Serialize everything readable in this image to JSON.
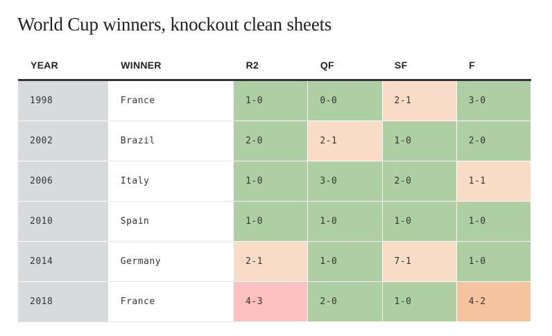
{
  "title": "World Cup winners, knockout clean sheets",
  "columns": [
    "YEAR",
    "WINNER",
    "R2",
    "QF",
    "SF",
    "F"
  ],
  "colors": {
    "clean_sheet": "#aecfa4",
    "conceded_one": "#f9dcc7",
    "conceded_two": "#f6c39f",
    "conceded_three": "#fdc1c2",
    "year_bg": "#d9dadb"
  },
  "rows": [
    {
      "year": "1998",
      "winner": "France",
      "results": [
        {
          "score": "1-0",
          "conceded": 0
        },
        {
          "score": "0-0",
          "conceded": 0
        },
        {
          "score": "2-1",
          "conceded": 1
        },
        {
          "score": "3-0",
          "conceded": 0
        }
      ]
    },
    {
      "year": "2002",
      "winner": "Brazil",
      "results": [
        {
          "score": "2-0",
          "conceded": 0
        },
        {
          "score": "2-1",
          "conceded": 1
        },
        {
          "score": "1-0",
          "conceded": 0
        },
        {
          "score": "2-0",
          "conceded": 0
        }
      ]
    },
    {
      "year": "2006",
      "winner": "Italy",
      "results": [
        {
          "score": "1-0",
          "conceded": 0
        },
        {
          "score": "3-0",
          "conceded": 0
        },
        {
          "score": "2-0",
          "conceded": 0
        },
        {
          "score": "1-1",
          "conceded": 1
        }
      ]
    },
    {
      "year": "2010",
      "winner": "Spain",
      "results": [
        {
          "score": "1-0",
          "conceded": 0
        },
        {
          "score": "1-0",
          "conceded": 0
        },
        {
          "score": "1-0",
          "conceded": 0
        },
        {
          "score": "1-0",
          "conceded": 0
        }
      ]
    },
    {
      "year": "2014",
      "winner": "Germany",
      "results": [
        {
          "score": "2-1",
          "conceded": 1
        },
        {
          "score": "1-0",
          "conceded": 0
        },
        {
          "score": "7-1",
          "conceded": 1
        },
        {
          "score": "1-0",
          "conceded": 0
        }
      ]
    },
    {
      "year": "2018",
      "winner": "France",
      "results": [
        {
          "score": "4-3",
          "conceded": 3
        },
        {
          "score": "2-0",
          "conceded": 0
        },
        {
          "score": "1-0",
          "conceded": 0
        },
        {
          "score": "4-2",
          "conceded": 2
        }
      ]
    }
  ]
}
